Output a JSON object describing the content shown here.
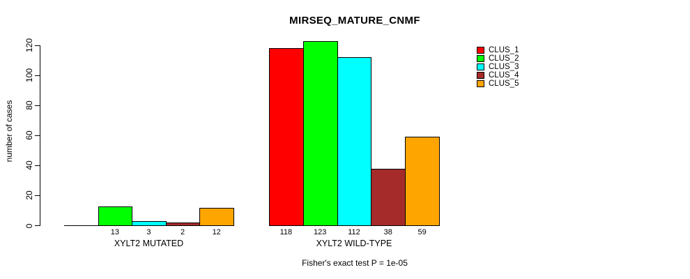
{
  "chart_data": {
    "type": "bar",
    "title": "MIRSEQ_MATURE_CNMF",
    "ylabel": "number of cases",
    "xlabel": "",
    "ylim": [
      0,
      120
    ],
    "y_ticks": [
      0,
      20,
      40,
      60,
      80,
      100,
      120
    ],
    "categories": [
      "XYLT2 MUTATED",
      "XYLT2 WILD-TYPE"
    ],
    "series": [
      {
        "name": "CLUS_1",
        "color": "#FF0000",
        "values": [
          0,
          118
        ]
      },
      {
        "name": "CLUS_2",
        "color": "#00FF00",
        "values": [
          13,
          123
        ]
      },
      {
        "name": "CLUS_3",
        "color": "#00FFFF",
        "values": [
          3,
          112
        ]
      },
      {
        "name": "CLUS_4",
        "color": "#A52A2A",
        "values": [
          2,
          38
        ]
      },
      {
        "name": "CLUS_5",
        "color": "#FFA500",
        "values": [
          12,
          59
        ]
      }
    ],
    "bar_value_labels": [
      [
        "",
        "13",
        "3",
        "2",
        "12"
      ],
      [
        "118",
        "123",
        "112",
        "38",
        "59"
      ]
    ],
    "annotation": "Fisher's exact test P = 1e-05",
    "legend_position": "right",
    "grid": false,
    "background_color": "#FFFFFF",
    "text_color": "#000000"
  }
}
